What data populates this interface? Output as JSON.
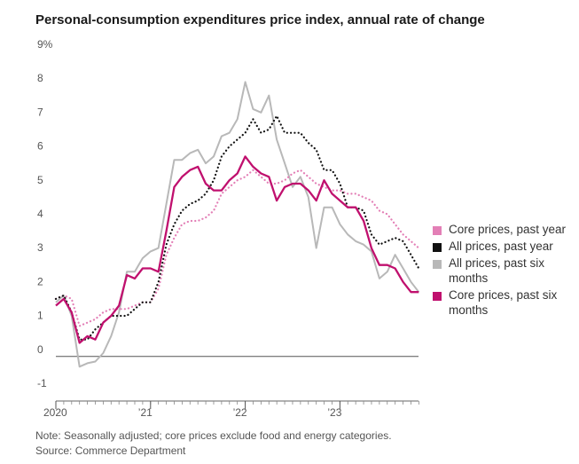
{
  "header": {
    "title": "Personal-consumption expenditures price index, annual rate of change"
  },
  "footer": {
    "note": "Note: Seasonally adjusted; core prices exclude food and energy categories.",
    "source": "Source: Commerce Department"
  },
  "chart_data": {
    "type": "line",
    "title": "Personal-consumption expenditures price index, annual rate of change",
    "xlabel": "",
    "ylabel": "",
    "x_tick_labels": [
      "2020",
      "’21",
      "’22",
      "’23"
    ],
    "x_tick_values": [
      2020.0,
      2021.0,
      2022.0,
      2023.0
    ],
    "xlim": [
      2020.0,
      2023.83
    ],
    "y_tick_labels": [
      "9%",
      "8",
      "7",
      "6",
      "5",
      "4",
      "3",
      "2",
      "1",
      "0",
      "-1"
    ],
    "y_tick_values": [
      9,
      8,
      7,
      6,
      5,
      4,
      3,
      2,
      1,
      0,
      -1
    ],
    "ylim": [
      -1,
      9
    ],
    "grid": false,
    "legend_position": "right",
    "x": [
      2020.0,
      2020.083,
      2020.167,
      2020.25,
      2020.333,
      2020.417,
      2020.5,
      2020.583,
      2020.667,
      2020.75,
      2020.833,
      2020.917,
      2021.0,
      2021.083,
      2021.167,
      2021.25,
      2021.333,
      2021.417,
      2021.5,
      2021.583,
      2021.667,
      2021.75,
      2021.833,
      2021.917,
      2022.0,
      2022.083,
      2022.167,
      2022.25,
      2022.333,
      2022.417,
      2022.5,
      2022.583,
      2022.667,
      2022.75,
      2022.833,
      2022.917,
      2023.0,
      2023.083,
      2023.167,
      2023.25,
      2023.333,
      2023.417,
      2023.5,
      2023.583,
      2023.667,
      2023.75,
      2023.833
    ],
    "series": [
      {
        "name": "Core prices, past year",
        "color": "#e37fb6",
        "style": "dotted",
        "values": [
          1.7,
          1.8,
          1.7,
          0.9,
          1.0,
          1.1,
          1.3,
          1.4,
          1.4,
          1.4,
          1.5,
          1.6,
          1.6,
          2.0,
          3.0,
          3.5,
          3.9,
          4.0,
          4.0,
          4.1,
          4.3,
          4.8,
          5.0,
          5.2,
          5.3,
          5.5,
          5.3,
          5.1,
          5.1,
          5.2,
          5.4,
          5.5,
          5.3,
          5.1,
          5.0,
          4.9,
          4.9,
          4.8,
          4.8,
          4.7,
          4.6,
          4.3,
          4.2,
          3.9,
          3.6,
          3.4,
          3.2
        ]
      },
      {
        "name": "All prices, past year",
        "color": "#111111",
        "style": "dotted",
        "values": [
          1.7,
          1.8,
          1.3,
          0.5,
          0.5,
          0.8,
          1.0,
          1.2,
          1.2,
          1.2,
          1.4,
          1.6,
          1.6,
          2.2,
          3.3,
          3.9,
          4.3,
          4.5,
          4.6,
          4.8,
          5.2,
          5.9,
          6.2,
          6.4,
          6.6,
          7.0,
          6.6,
          6.7,
          7.1,
          6.6,
          6.6,
          6.6,
          6.3,
          6.1,
          5.5,
          5.5,
          5.1,
          4.4,
          4.4,
          4.3,
          3.6,
          3.3,
          3.4,
          3.5,
          3.4,
          3.0,
          2.6
        ]
      },
      {
        "name": "All prices, past six months",
        "color": "#b8b8b8",
        "style": "solid",
        "values": [
          1.6,
          1.8,
          1.2,
          -0.3,
          -0.2,
          -0.15,
          0.1,
          0.6,
          1.3,
          2.5,
          2.5,
          2.9,
          3.1,
          3.2,
          4.5,
          5.8,
          5.8,
          6.0,
          6.1,
          5.7,
          5.9,
          6.5,
          6.6,
          7.0,
          8.1,
          7.3,
          7.2,
          7.7,
          6.4,
          5.7,
          5.0,
          5.3,
          4.7,
          3.2,
          4.4,
          4.4,
          3.9,
          3.6,
          3.4,
          3.3,
          3.1,
          2.3,
          2.5,
          3.0,
          2.6,
          2.2,
          1.9
        ]
      },
      {
        "name": "Core prices, past six months",
        "color": "#c0106e",
        "style": "solid",
        "values": [
          1.5,
          1.7,
          1.3,
          0.4,
          0.6,
          0.5,
          1.0,
          1.2,
          1.5,
          2.4,
          2.3,
          2.6,
          2.6,
          2.5,
          3.7,
          5.0,
          5.3,
          5.5,
          5.6,
          5.1,
          4.9,
          4.9,
          5.2,
          5.4,
          5.9,
          5.6,
          5.4,
          5.3,
          4.6,
          5.0,
          5.1,
          5.1,
          4.9,
          4.6,
          5.2,
          4.8,
          4.6,
          4.4,
          4.4,
          4.0,
          3.2,
          2.7,
          2.7,
          2.6,
          2.2,
          1.9,
          1.9
        ]
      }
    ]
  }
}
